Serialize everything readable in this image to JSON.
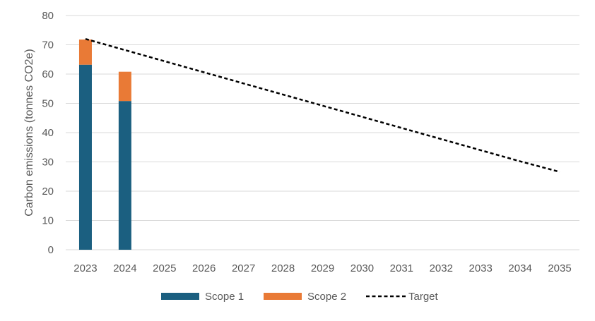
{
  "chart_data": {
    "type": "bar",
    "categories": [
      "2023",
      "2024",
      "2025",
      "2026",
      "2027",
      "2028",
      "2029",
      "2030",
      "2031",
      "2032",
      "2033",
      "2034",
      "2035"
    ],
    "series": [
      {
        "name": "Scope 1",
        "kind": "bar",
        "color": "#1b5f80",
        "values": [
          63.2,
          50.8,
          null,
          null,
          null,
          null,
          null,
          null,
          null,
          null,
          null,
          null,
          null
        ]
      },
      {
        "name": "Scope 2",
        "kind": "bar",
        "color": "#e97a36",
        "values": [
          8.6,
          10.0,
          null,
          null,
          null,
          null,
          null,
          null,
          null,
          null,
          null,
          null,
          null
        ]
      },
      {
        "name": "Target",
        "kind": "line",
        "style": "dashed",
        "color": "#000000",
        "values": [
          72.0,
          68.2,
          64.4,
          60.6,
          56.8,
          53.0,
          49.2,
          45.4,
          41.6,
          37.8,
          34.0,
          30.2,
          26.6
        ]
      }
    ],
    "stacked": true,
    "ylabel": "Carbon emissions (tonnes CO2e)",
    "xlabel": "",
    "ylim": [
      0,
      80
    ],
    "yticks": [
      "0",
      "10",
      "20",
      "30",
      "40",
      "50",
      "60",
      "70",
      "80"
    ],
    "grid": true,
    "legend_position": "bottom"
  }
}
